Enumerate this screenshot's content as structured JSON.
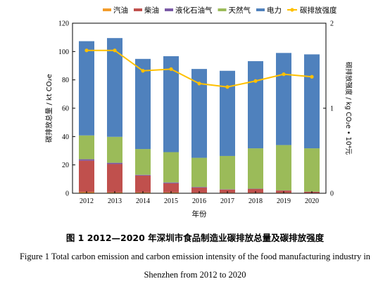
{
  "chart_data": {
    "type": "bar",
    "stacked": true,
    "categories": [
      "2012",
      "2013",
      "2014",
      "2015",
      "2016",
      "2017",
      "2018",
      "2019",
      "2020"
    ],
    "series": [
      {
        "name": "汽油",
        "color": "#f39c2a",
        "values": [
          0.8,
          0.6,
          0.6,
          0.6,
          0.4,
          0.4,
          0.4,
          0.4,
          0.3
        ]
      },
      {
        "name": "柴油",
        "color": "#c0504d",
        "values": [
          22.2,
          20.0,
          11.9,
          6.4,
          3.6,
          2.2,
          2.6,
          1.5,
          0.7
        ]
      },
      {
        "name": "液化石油气",
        "color": "#7a5aa6",
        "values": [
          1.0,
          0.9,
          0.5,
          0.6,
          0.4,
          0.2,
          0.2,
          0.1,
          0.1
        ]
      },
      {
        "name": "天然气",
        "color": "#9bbb59",
        "values": [
          16.8,
          18.3,
          18.2,
          21.4,
          20.6,
          23.5,
          28.5,
          32.0,
          30.6
        ]
      },
      {
        "name": "电力",
        "color": "#4f81bd",
        "values": [
          66.5,
          69.7,
          63.6,
          67.7,
          62.7,
          60.1,
          61.5,
          65.0,
          66.3
        ]
      }
    ],
    "line": {
      "name": "碳排放强度",
      "color": "#ffc000",
      "values": [
        1.68,
        1.68,
        1.44,
        1.46,
        1.29,
        1.25,
        1.32,
        1.4,
        1.37
      ]
    },
    "ylabel_left": "碳排放总量 / kt CO₂e",
    "ylabel_right": "碳排放强度 / kg CO₂e • 10⁴元",
    "xlabel": "年份",
    "ylim_left": [
      0,
      120
    ],
    "yticks_left": [
      0,
      20,
      40,
      60,
      80,
      100,
      120
    ],
    "ylim_right": [
      0,
      2
    ],
    "yticks_right": [
      0,
      1,
      2
    ],
    "grid": false,
    "legend_position": "top"
  },
  "caption_cn": "图 1 2012—2020 年深圳市食品制造业碳排放总量及碳排放强度",
  "caption_en": "Figure 1 Total carbon emission and carbon emission intensity of the food manufacturing industry in Shenzhen from 2012 to 2020"
}
